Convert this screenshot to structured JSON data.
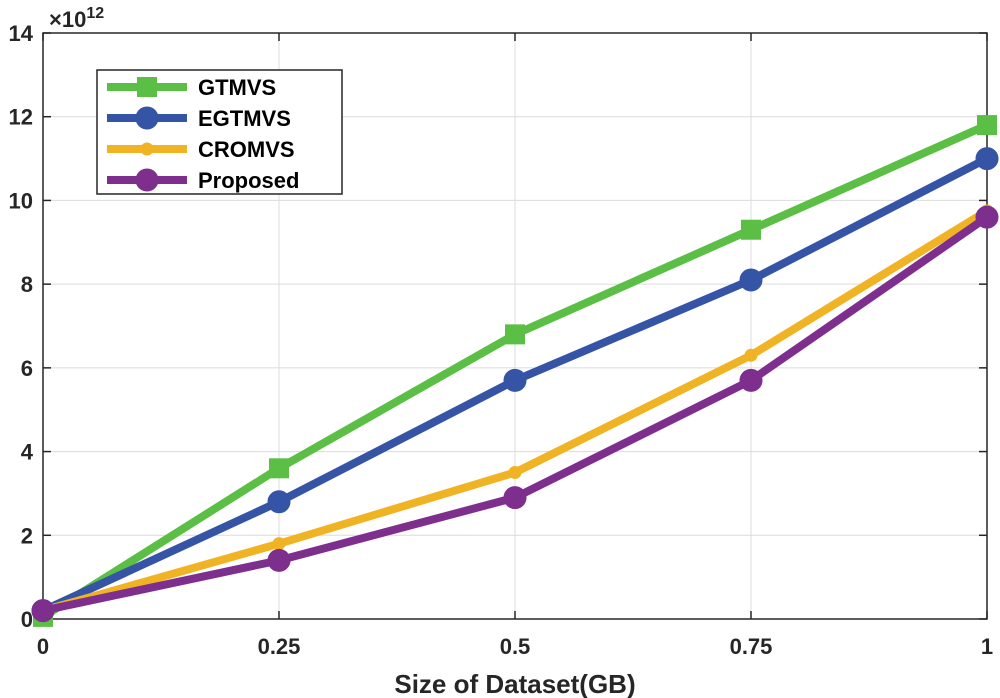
{
  "chart_data": {
    "type": "line",
    "title": "",
    "xlabel": "Size of Dataset(GB)",
    "ylabel": "",
    "y_multiplier": "×10",
    "y_exponent": "12",
    "x": [
      0,
      0.25,
      0.5,
      0.75,
      1
    ],
    "x_tick_labels": [
      "0",
      "0.25",
      "0.5",
      "0.75",
      "1"
    ],
    "y_tick_values": [
      0,
      2,
      4,
      6,
      8,
      10,
      12,
      14
    ],
    "y_tick_labels": [
      "0",
      "2",
      "4",
      "6",
      "8",
      "10",
      "12",
      "14"
    ],
    "xlim": [
      0,
      1
    ],
    "ylim": [
      0,
      14
    ],
    "grid": true,
    "legend_position": "top-left",
    "series": [
      {
        "name": "GTMVS",
        "color": "#5bbf45",
        "marker": "square",
        "values": [
          0.05,
          3.6,
          6.8,
          9.3,
          11.8
        ]
      },
      {
        "name": "EGTMVS",
        "color": "#3654a5",
        "marker": "circle",
        "values": [
          0.2,
          2.8,
          5.7,
          8.1,
          11.0
        ]
      },
      {
        "name": "CROMVS",
        "color": "#f0b323",
        "marker": "dot",
        "values": [
          0.2,
          1.8,
          3.5,
          6.3,
          9.75
        ]
      },
      {
        "name": "Proposed",
        "color": "#7e2f8e",
        "marker": "circle",
        "values": [
          0.2,
          1.4,
          2.9,
          5.7,
          9.6
        ]
      }
    ]
  }
}
